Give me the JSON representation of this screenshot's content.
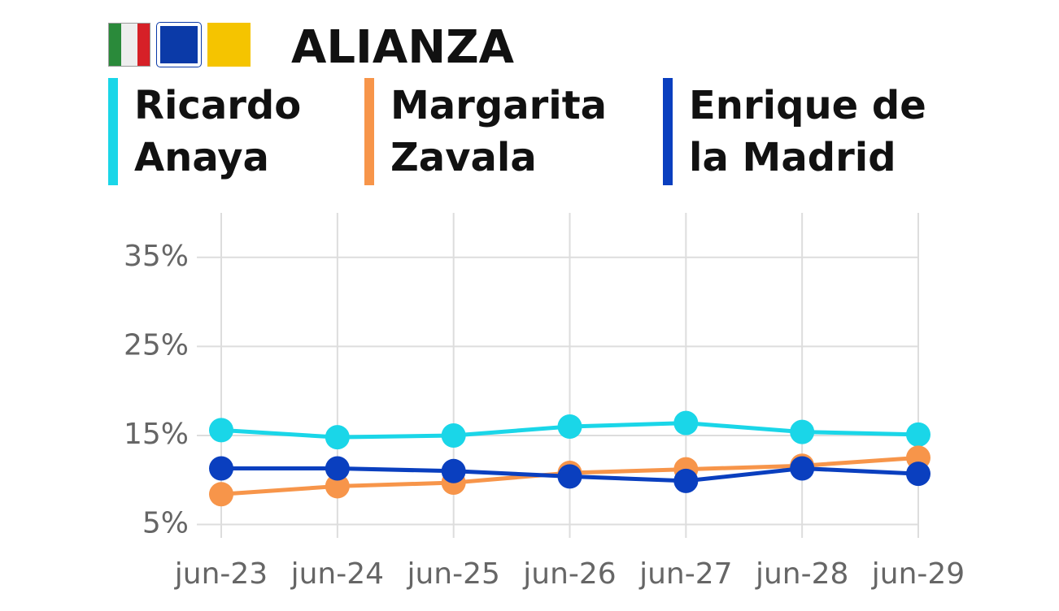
{
  "chart_data": {
    "type": "line",
    "title": "ALIANZA",
    "categories": [
      "jun-23",
      "jun-24",
      "jun-25",
      "jun-26",
      "jun-27",
      "jun-28",
      "jun-29"
    ],
    "series": [
      {
        "name": "Ricardo Anaya",
        "color": "#1ad6e8",
        "values": [
          15.6,
          14.8,
          15.0,
          16.0,
          16.4,
          15.4,
          15.1
        ]
      },
      {
        "name": "Margarita Zavala",
        "color": "#f7954a",
        "values": [
          8.4,
          9.3,
          9.7,
          10.8,
          11.2,
          11.6,
          12.5
        ]
      },
      {
        "name": "Enrique de la Madrid",
        "color": "#0a3fbf",
        "values": [
          11.3,
          11.3,
          11.0,
          10.4,
          9.9,
          11.3,
          10.7
        ]
      }
    ],
    "ylim": [
      3.5,
      40
    ],
    "yticks": [
      {
        "value": 5,
        "label": "5%"
      },
      {
        "value": 15,
        "label": "15%"
      },
      {
        "value": 25,
        "label": "25%"
      },
      {
        "value": 35,
        "label": "35%"
      }
    ],
    "grid": true
  }
}
